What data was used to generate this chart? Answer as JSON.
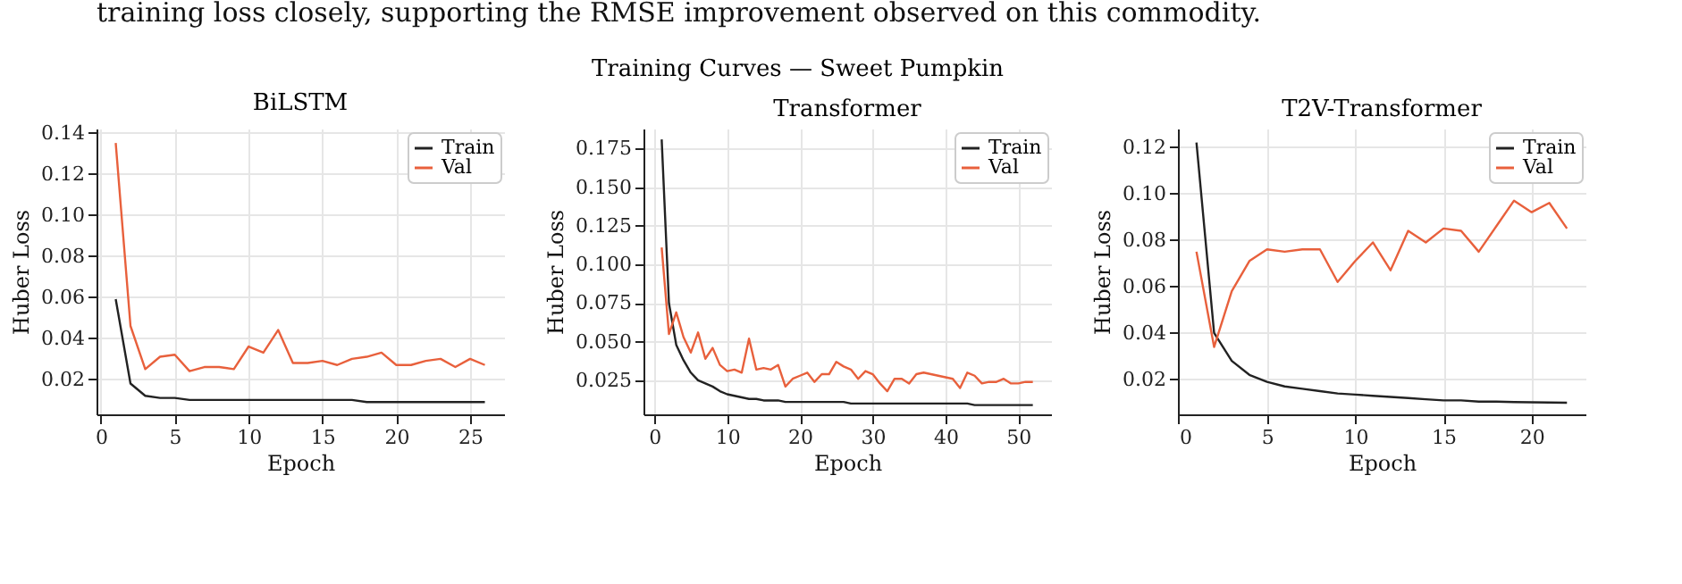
{
  "chart_data": [
    {
      "type": "line",
      "title": "BiLSTM",
      "xlabel": "Epoch",
      "ylabel": "Huber Loss",
      "annotations": [
        "training loss closely, supporting the RMSE improvement observed on this commodity.",
        "Training Curves — Sweet Pumpkin"
      ],
      "x": [
        1,
        2,
        3,
        4,
        5,
        6,
        7,
        8,
        9,
        10,
        11,
        12,
        13,
        14,
        15,
        16,
        17,
        18,
        19,
        20,
        21,
        22,
        23,
        24,
        25,
        26
      ],
      "series": [
        {
          "name": "Train",
          "color": "#222222",
          "values": [
            0.059,
            0.018,
            0.012,
            0.011,
            0.011,
            0.01,
            0.01,
            0.01,
            0.01,
            0.01,
            0.01,
            0.01,
            0.01,
            0.01,
            0.01,
            0.01,
            0.01,
            0.009,
            0.009,
            0.009,
            0.009,
            0.009,
            0.009,
            0.009,
            0.009,
            0.009
          ]
        },
        {
          "name": "Val",
          "color": "#e8603c",
          "values": [
            0.135,
            0.046,
            0.025,
            0.031,
            0.032,
            0.024,
            0.026,
            0.026,
            0.025,
            0.036,
            0.033,
            0.044,
            0.028,
            0.028,
            0.029,
            0.027,
            0.03,
            0.031,
            0.033,
            0.027,
            0.027,
            0.029,
            0.03,
            0.026,
            0.03,
            0.027
          ]
        }
      ],
      "xlim": [
        -0.3,
        27.3
      ],
      "xticks": [
        0,
        5,
        10,
        15,
        20,
        25
      ],
      "ylim": [
        0.003,
        0.142
      ],
      "yticks": [
        {
          "value": 0.02,
          "label": "0.02"
        },
        {
          "value": 0.04,
          "label": "0.04"
        },
        {
          "value": 0.06,
          "label": "0.06"
        },
        {
          "value": 0.08,
          "label": "0.08"
        },
        {
          "value": 0.1,
          "label": "0.10"
        },
        {
          "value": 0.12,
          "label": "0.12"
        },
        {
          "value": 0.14,
          "label": "0.14"
        }
      ],
      "grid": true,
      "legend": "top right"
    },
    {
      "type": "line",
      "title": "Transformer",
      "xlabel": "Epoch",
      "ylabel": "Huber Loss",
      "x": [
        1,
        2,
        3,
        4,
        5,
        6,
        7,
        8,
        9,
        10,
        11,
        12,
        13,
        14,
        15,
        16,
        17,
        18,
        19,
        20,
        21,
        22,
        23,
        24,
        25,
        26,
        27,
        28,
        29,
        30,
        31,
        32,
        33,
        34,
        35,
        36,
        37,
        38,
        39,
        40,
        41,
        42,
        43,
        44,
        45,
        46,
        47,
        48,
        49,
        50,
        51,
        52
      ],
      "series": [
        {
          "name": "Train",
          "color": "#222222",
          "values": [
            0.181,
            0.075,
            0.048,
            0.038,
            0.03,
            0.025,
            0.023,
            0.021,
            0.018,
            0.016,
            0.015,
            0.014,
            0.013,
            0.013,
            0.012,
            0.012,
            0.012,
            0.011,
            0.011,
            0.011,
            0.011,
            0.011,
            0.011,
            0.011,
            0.011,
            0.011,
            0.01,
            0.01,
            0.01,
            0.01,
            0.01,
            0.01,
            0.01,
            0.01,
            0.01,
            0.01,
            0.01,
            0.01,
            0.01,
            0.01,
            0.01,
            0.01,
            0.01,
            0.009,
            0.009,
            0.009,
            0.009,
            0.009,
            0.009,
            0.009,
            0.009,
            0.009
          ]
        },
        {
          "name": "Val",
          "color": "#e8603c",
          "values": [
            0.111,
            0.055,
            0.069,
            0.053,
            0.043,
            0.056,
            0.039,
            0.046,
            0.035,
            0.031,
            0.032,
            0.03,
            0.052,
            0.032,
            0.033,
            0.032,
            0.035,
            0.021,
            0.026,
            0.028,
            0.03,
            0.024,
            0.029,
            0.029,
            0.037,
            0.034,
            0.032,
            0.026,
            0.031,
            0.029,
            0.023,
            0.018,
            0.026,
            0.026,
            0.023,
            0.029,
            0.03,
            0.029,
            0.028,
            0.027,
            0.026,
            0.02,
            0.03,
            0.028,
            0.023,
            0.024,
            0.024,
            0.026,
            0.023,
            0.023,
            0.024,
            0.024
          ]
        }
      ],
      "xlim": [
        -1.5,
        54.5
      ],
      "xticks": [
        0,
        10,
        20,
        30,
        40,
        50
      ],
      "ylim": [
        0.003,
        0.188
      ],
      "yticks": [
        {
          "value": 0.025,
          "label": "0.025"
        },
        {
          "value": 0.05,
          "label": "0.050"
        },
        {
          "value": 0.075,
          "label": "0.075"
        },
        {
          "value": 0.1,
          "label": "0.100"
        },
        {
          "value": 0.125,
          "label": "0.125"
        },
        {
          "value": 0.15,
          "label": "0.150"
        },
        {
          "value": 0.175,
          "label": "0.175"
        }
      ],
      "grid": true,
      "legend": "top right"
    },
    {
      "type": "line",
      "title": "T2V-Transformer",
      "xlabel": "Epoch",
      "ylabel": "Huber Loss",
      "x": [
        1,
        2,
        3,
        4,
        5,
        6,
        7,
        8,
        9,
        10,
        11,
        12,
        13,
        14,
        15,
        16,
        17,
        18,
        19,
        20,
        21,
        22
      ],
      "series": [
        {
          "name": "Train",
          "color": "#222222",
          "values": [
            0.122,
            0.04,
            0.028,
            0.022,
            0.019,
            0.017,
            0.016,
            0.015,
            0.014,
            0.0135,
            0.013,
            0.0125,
            0.012,
            0.0115,
            0.011,
            0.011,
            0.0105,
            0.0105,
            0.0103,
            0.0102,
            0.0101,
            0.01
          ]
        },
        {
          "name": "Val",
          "color": "#e8603c",
          "values": [
            0.075,
            0.034,
            0.058,
            0.071,
            0.076,
            0.075,
            0.076,
            0.076,
            0.062,
            0.071,
            0.079,
            0.067,
            0.084,
            0.079,
            0.085,
            0.084,
            0.075,
            0.086,
            0.097,
            0.092,
            0.096,
            0.085
          ]
        }
      ],
      "xlim": [
        -0.05,
        23.05
      ],
      "xticks": [
        0,
        5,
        10,
        15,
        20
      ],
      "ylim": [
        0.005,
        0.128
      ],
      "yticks": [
        {
          "value": 0.02,
          "label": "0.02"
        },
        {
          "value": 0.04,
          "label": "0.04"
        },
        {
          "value": 0.06,
          "label": "0.06"
        },
        {
          "value": 0.08,
          "label": "0.08"
        },
        {
          "value": 0.1,
          "label": "0.10"
        },
        {
          "value": 0.12,
          "label": "0.12"
        }
      ],
      "grid": true,
      "legend": "top right"
    }
  ]
}
